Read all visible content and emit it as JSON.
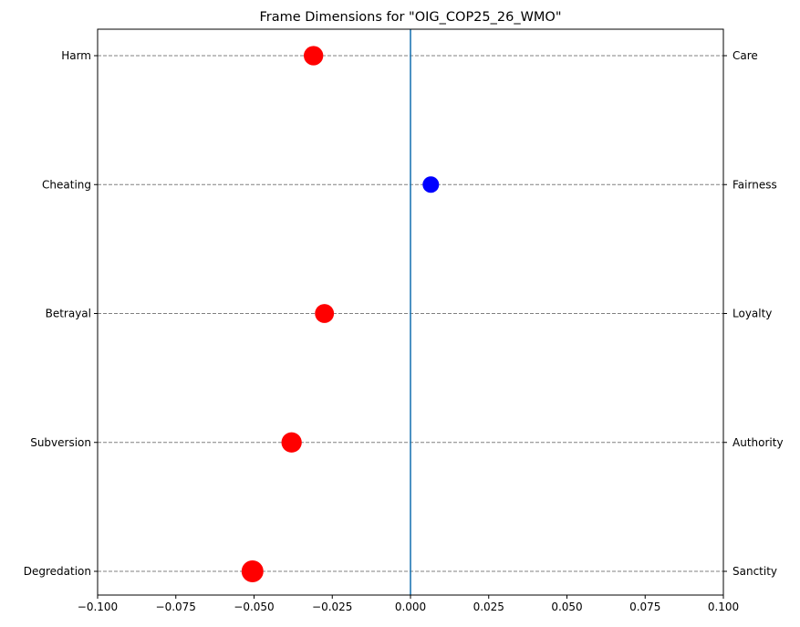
{
  "chart_data": {
    "type": "scatter",
    "title": "Frame Dimensions for \"OIG_COP25_26_WMO\"",
    "xlim": [
      -0.1,
      0.1
    ],
    "x_ticks": [
      -0.1,
      -0.075,
      -0.05,
      -0.025,
      0.0,
      0.025,
      0.05,
      0.075,
      0.1
    ],
    "x_tick_labels": [
      "−0.100",
      "−0.075",
      "−0.050",
      "−0.025",
      "0.000",
      "0.025",
      "0.050",
      "0.075",
      "0.100"
    ],
    "left_labels": [
      "Harm",
      "Cheating",
      "Betrayal",
      "Subversion",
      "Degredation"
    ],
    "right_labels": [
      "Care",
      "Fairness",
      "Loyalty",
      "Authority",
      "Sanctity"
    ],
    "points": [
      {
        "x": -0.031,
        "magnitude": 0.031,
        "color": "#ff0000"
      },
      {
        "x": 0.0065,
        "magnitude": 0.0065,
        "color": "#0000ff"
      },
      {
        "x": -0.0275,
        "magnitude": 0.0275,
        "color": "#ff0000"
      },
      {
        "x": -0.038,
        "magnitude": 0.038,
        "color": "#ff0000"
      },
      {
        "x": -0.0505,
        "magnitude": 0.0505,
        "color": "#ff0000"
      }
    ],
    "reference_line_x": 0.0,
    "reference_line_color": "#1f77b4",
    "grid": "horizontal dashed",
    "grid_color": "#808080",
    "negative_color": "#ff0000",
    "positive_color": "#0000ff"
  }
}
